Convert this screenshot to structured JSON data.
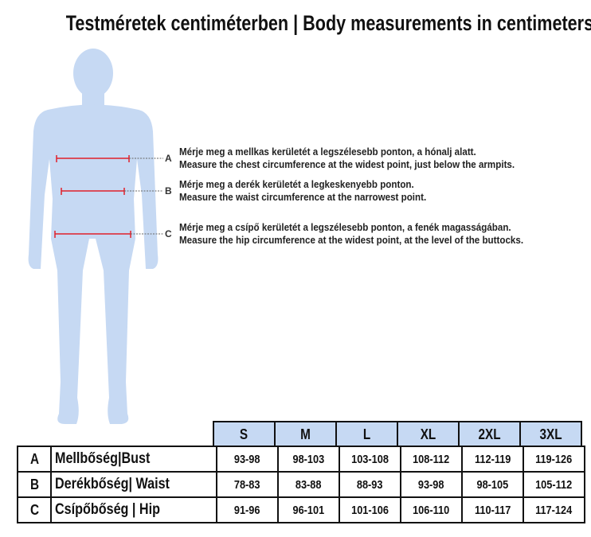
{
  "title": "Testméretek centiméterben | Body measurements in centimeters",
  "colors": {
    "figure": "#c6d9f3",
    "marker": "#e0202a",
    "header_bg": "#c6d9f3"
  },
  "notes": [
    {
      "letter": "A",
      "hu": "Mérje meg a mellkas kerületét a legszélesebb ponton, a hónalj alatt.",
      "en": "Measure the chest circumference at the widest point, just below the armpits."
    },
    {
      "letter": "B",
      "hu": "Mérje meg a derék kerületét a legkeskenyebb ponton.",
      "en": "Measure the waist circumference at the narrowest point."
    },
    {
      "letter": "C",
      "hu": "Mérje meg a csípő kerületét a legszélesebb ponton, a fenék magasságában.",
      "en": "Measure the hip circumference at the widest point, at the level of the buttocks."
    }
  ],
  "table": {
    "sizes": [
      "S",
      "M",
      "L",
      "XL",
      "2XL",
      "3XL"
    ],
    "rows": [
      {
        "letter": "A",
        "label": "Mellbőség|Bust",
        "values": [
          "93-98",
          "98-103",
          "103-108",
          "108-112",
          "112-119",
          "119-126"
        ]
      },
      {
        "letter": "B",
        "label": "Derékbőség| Waist",
        "values": [
          "78-83",
          "83-88",
          "88-93",
          "93-98",
          "98-105",
          "105-112"
        ]
      },
      {
        "letter": "C",
        "label": "Csípőbőség | Hip",
        "values": [
          "91-96",
          "96-101",
          "101-106",
          "106-110",
          "110-117",
          "117-124"
        ]
      }
    ]
  }
}
